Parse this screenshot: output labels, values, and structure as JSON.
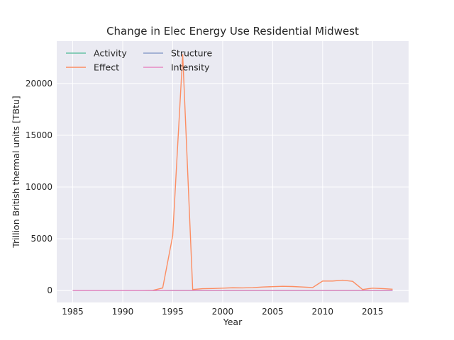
{
  "chart_data": {
    "type": "line",
    "title": "Change in Elec Energy Use Residential Midwest",
    "xlabel": "Year",
    "ylabel": "Trillion British thermal units [TBtu]",
    "xlim": [
      1983.4,
      2018.6
    ],
    "ylim": [
      -1150,
      24100
    ],
    "xticks": [
      1985,
      1990,
      1995,
      2000,
      2005,
      2010,
      2015
    ],
    "yticks": [
      0,
      5000,
      10000,
      15000,
      20000
    ],
    "grid": true,
    "legend_position": "top-left",
    "legend_columns": 2,
    "x": [
      1985,
      1986,
      1987,
      1988,
      1989,
      1990,
      1991,
      1992,
      1993,
      1994,
      1995,
      1996,
      1997,
      1998,
      1999,
      2000,
      2001,
      2002,
      2003,
      2004,
      2005,
      2006,
      2007,
      2008,
      2009,
      2010,
      2011,
      2012,
      2013,
      2014,
      2015,
      2016,
      2017
    ],
    "series": [
      {
        "name": "Activity",
        "color": "#66c2a5",
        "values": [
          0,
          0,
          0,
          0,
          0,
          0,
          0,
          0,
          0,
          0,
          5,
          5,
          5,
          5,
          5,
          5,
          5,
          5,
          5,
          5,
          5,
          5,
          5,
          5,
          5,
          5,
          5,
          5,
          5,
          5,
          5,
          5,
          5
        ]
      },
      {
        "name": "Effect",
        "color": "#fc8d62",
        "values": [
          0,
          0,
          0,
          0,
          0,
          0,
          0,
          0,
          20,
          250,
          5300,
          22800,
          100,
          180,
          200,
          230,
          270,
          260,
          280,
          340,
          380,
          410,
          390,
          340,
          290,
          920,
          920,
          1000,
          890,
          100,
          230,
          190,
          130
        ]
      },
      {
        "name": "Structure",
        "color": "#8da0cb",
        "values": [
          0,
          0,
          0,
          0,
          0,
          0,
          0,
          0,
          0,
          0,
          0,
          0,
          0,
          0,
          0,
          0,
          0,
          0,
          0,
          0,
          0,
          0,
          0,
          0,
          0,
          0,
          0,
          0,
          0,
          0,
          0,
          0,
          0
        ]
      },
      {
        "name": "Intensity",
        "color": "#e78ac3",
        "values": [
          0,
          0,
          0,
          0,
          0,
          0,
          0,
          0,
          0,
          0,
          0,
          0,
          0,
          0,
          0,
          0,
          0,
          0,
          0,
          0,
          0,
          0,
          0,
          0,
          0,
          0,
          0,
          0,
          0,
          0,
          0,
          0,
          0
        ]
      }
    ]
  },
  "colors": {
    "plot_background": "#eaeaf2",
    "grid": "#ffffff",
    "text": "#262626"
  }
}
